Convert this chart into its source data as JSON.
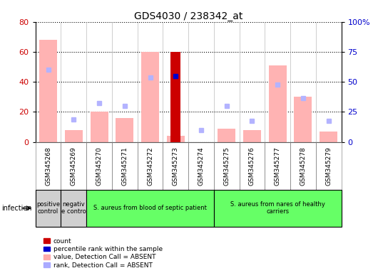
{
  "title": "GDS4030 / 238342_at",
  "samples": [
    "GSM345268",
    "GSM345269",
    "GSM345270",
    "GSM345271",
    "GSM345272",
    "GSM345273",
    "GSM345274",
    "GSM345275",
    "GSM345276",
    "GSM345277",
    "GSM345278",
    "GSM345279"
  ],
  "count_values": [
    0,
    0,
    0,
    0,
    0,
    60,
    0,
    0,
    0,
    0,
    0,
    0
  ],
  "count_rank": [
    0,
    0,
    0,
    0,
    0,
    44,
    0,
    0,
    0,
    0,
    0,
    0
  ],
  "absent_bar_values": [
    68,
    8,
    20,
    16,
    60,
    4,
    0,
    9,
    8,
    51,
    30,
    7
  ],
  "absent_rank_values": [
    48,
    15,
    26,
    24,
    43,
    0,
    8,
    24,
    14,
    38,
    29,
    14
  ],
  "ylim_left": [
    0,
    80
  ],
  "ylim_right": [
    0,
    100
  ],
  "left_ticks": [
    0,
    20,
    40,
    60,
    80
  ],
  "right_ticks": [
    0,
    25,
    50,
    75,
    100
  ],
  "right_tick_labels": [
    "0",
    "25",
    "50",
    "75",
    "100%"
  ],
  "groups": [
    {
      "label": "positive\ncontrol",
      "start": 0,
      "end": 1,
      "color": "#d0d0d0"
    },
    {
      "label": "negativ\ne contro",
      "start": 1,
      "end": 2,
      "color": "#d0d0d0"
    },
    {
      "label": "S. aureus from blood of septic patient",
      "start": 2,
      "end": 7,
      "color": "#66ff66"
    },
    {
      "label": "S. aureus from nares of healthy\ncarriers",
      "start": 7,
      "end": 12,
      "color": "#66ff66"
    }
  ],
  "infection_label": "infection",
  "legend_items": [
    {
      "color": "#cc0000",
      "label": "count"
    },
    {
      "color": "#0000cc",
      "label": "percentile rank within the sample"
    },
    {
      "color": "#ffaaaa",
      "label": "value, Detection Call = ABSENT"
    },
    {
      "color": "#aaaaff",
      "label": "rank, Detection Call = ABSENT"
    }
  ],
  "bar_color_absent": "#ffb3b3",
  "bar_color_rank_absent": "#b3b3ff",
  "bar_color_count": "#cc0000",
  "marker_color_count_rank": "#0000cc",
  "marker_color_absent_rank": "#b3b3ff",
  "plot_bg": "#ffffff",
  "tick_label_color_left": "#cc0000",
  "tick_label_color_right": "#0000cc",
  "xtick_bg": "#d0d0d0",
  "group_border_color": "#000000"
}
